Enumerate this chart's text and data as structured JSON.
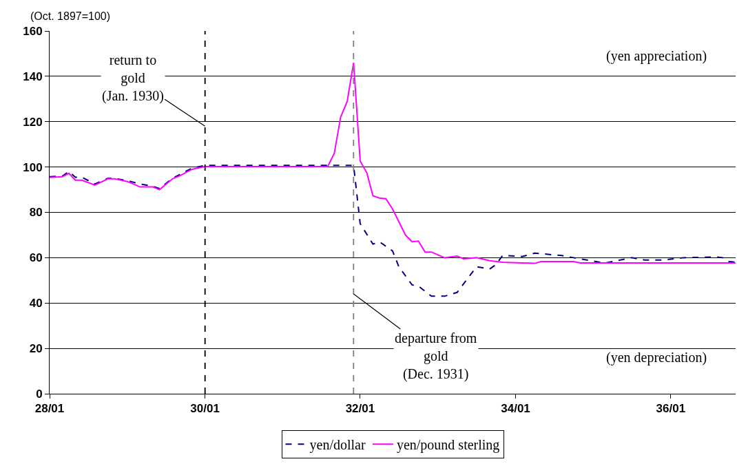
{
  "chart_data": {
    "type": "line",
    "ylabel": "(Oct. 1897=100)",
    "series": [
      {
        "name": "yen/dollar",
        "color": "#000080",
        "line_style": "dashed",
        "x": [
          "1928-01",
          "1928-03",
          "1928-04",
          "1928-05",
          "1928-06",
          "1928-08",
          "1928-10",
          "1928-11",
          "1929-01",
          "1929-03",
          "1929-05",
          "1929-06",
          "1929-08",
          "1929-09",
          "1929-11",
          "1930-01",
          "1930-06",
          "1931-01",
          "1931-06",
          "1931-12",
          "1932-01",
          "1932-03",
          "1932-04",
          "1932-06",
          "1932-07",
          "1932-09",
          "1932-10",
          "1932-12",
          "1933-02",
          "1933-04",
          "1933-07",
          "1933-09",
          "1933-10",
          "1933-11",
          "1934-02",
          "1934-04",
          "1934-08",
          "1934-10",
          "1935-02",
          "1935-03",
          "1935-07",
          "1935-09",
          "1935-12",
          "1936-03",
          "1936-08",
          "1936-09",
          "1936-10",
          "1936-11"
        ],
        "values": [
          95.7,
          96,
          98,
          95.5,
          95.5,
          92.5,
          95,
          95,
          94,
          92.5,
          91.5,
          90.5,
          95,
          96.5,
          99.5,
          100.7,
          100.7,
          100.7,
          100.7,
          100.7,
          75,
          66,
          67,
          63,
          56,
          48,
          47.5,
          43,
          43,
          44.7,
          56,
          55,
          57,
          61,
          60.5,
          62,
          61,
          60,
          58,
          57.7,
          60,
          59,
          59,
          60,
          60.3,
          60,
          58.3,
          58
        ]
      },
      {
        "name": "yen/pound sterling",
        "color": "#ff00ff",
        "line_style": "solid",
        "x": [
          "1928-01",
          "1928-03",
          "1928-04",
          "1928-05",
          "1928-06",
          "1928-08",
          "1928-10",
          "1928-11",
          "1929-01",
          "1929-02",
          "1929-03",
          "1929-05",
          "1929-06",
          "1929-08",
          "1929-09",
          "1929-11",
          "1930-01",
          "1930-06",
          "1931-01",
          "1931-08",
          "1931-09",
          "1931-10",
          "1931-11",
          "1931-12",
          "1932-01",
          "1932-02",
          "1932-03",
          "1932-04",
          "1932-05",
          "1932-06",
          "1932-08",
          "1932-09",
          "1932-10",
          "1932-11",
          "1932-12",
          "1933-02",
          "1933-04",
          "1933-05",
          "1933-07",
          "1933-09",
          "1933-11",
          "1934-04",
          "1934-05",
          "1934-10",
          "1934-11",
          "1935-06",
          "1936-01",
          "1936-11"
        ],
        "values": [
          95.4,
          95.7,
          97.2,
          94.2,
          94.2,
          92,
          94.8,
          94.8,
          93.6,
          92.4,
          91.2,
          91.2,
          90,
          94.8,
          96,
          99,
          100.2,
          100.2,
          100.2,
          100.2,
          106,
          122,
          129,
          146,
          102.6,
          97.5,
          87.3,
          86.3,
          86,
          81.5,
          70,
          67,
          67.3,
          62.5,
          62.5,
          60,
          60.7,
          59.5,
          60,
          58.7,
          58,
          57.5,
          58.3,
          58.3,
          57.7,
          57.7,
          57.7,
          57.7
        ]
      }
    ],
    "xlim": [
      "1928-01",
      "1936-11"
    ],
    "xticks": [
      {
        "value": "1928-01",
        "label": "28/01"
      },
      {
        "value": "1930-01",
        "label": "30/01"
      },
      {
        "value": "1932-01",
        "label": "32/01"
      },
      {
        "value": "1934-01",
        "label": "34/01"
      },
      {
        "value": "1936-01",
        "label": "36/01"
      }
    ],
    "ylim": [
      0,
      160
    ],
    "yticks": [
      0,
      20,
      40,
      60,
      80,
      100,
      120,
      140,
      160
    ],
    "grid": "y",
    "legend": "bottom",
    "marker": "none",
    "ref_lines": [
      {
        "axis": "x",
        "value": "1930-01",
        "label": "return to\ngold\n(Jan. 1930)",
        "color": "#000000",
        "line_style": "dashed"
      },
      {
        "axis": "x",
        "value": "1931-12",
        "label": "departure from\ngold\n(Dec. 1931)",
        "color": "#808080",
        "line_style": "dashed"
      }
    ],
    "annotations": [
      "(yen appreciation)",
      "(yen depreciation)"
    ]
  }
}
